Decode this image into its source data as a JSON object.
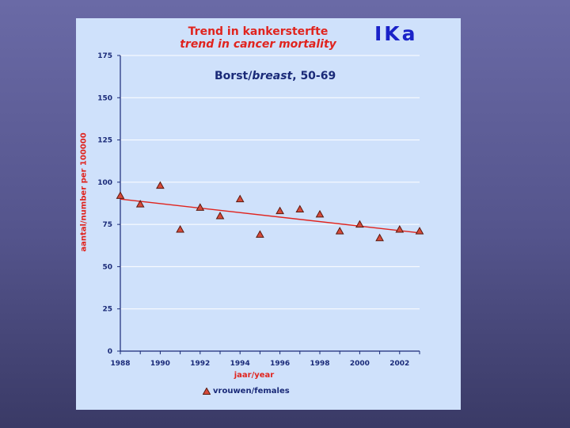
{
  "header": {
    "title_nl": "Trend in kankersterfte",
    "title_en": "trend in cancer mortality",
    "logo": "IKa"
  },
  "subtitle": {
    "prefix": "Borst/",
    "italic": "breast",
    "suffix": ", 50-69"
  },
  "colors": {
    "panel_background": "#cfe1fb",
    "title": "#e0241e",
    "logo": "#1a22c8",
    "axis_text": "#1a2a78",
    "trend_line": "#e0241e",
    "marker_fill": "#d64a3a"
  },
  "chart_data": {
    "type": "scatter",
    "ylabel": "aantal/number per 100000",
    "xlabel": "jaar/year",
    "xlim": [
      1988,
      2003
    ],
    "ylim": [
      0,
      175
    ],
    "x_ticks": [
      1988,
      1990,
      1992,
      1994,
      1996,
      1998,
      2000,
      2002
    ],
    "y_ticks": [
      0,
      25,
      50,
      75,
      100,
      125,
      150,
      175
    ],
    "grid": true,
    "legend_position": "bottom",
    "series": [
      {
        "name": "vrouwen/females",
        "marker": "triangle",
        "x": [
          1988,
          1989,
          1990,
          1991,
          1992,
          1993,
          1994,
          1995,
          1996,
          1997,
          1998,
          1999,
          2000,
          2001,
          2002,
          2003
        ],
        "y": [
          92,
          87,
          98,
          72,
          85,
          80,
          90,
          69,
          83,
          84,
          81,
          71,
          75,
          67,
          72,
          71
        ]
      }
    ],
    "trend_line": {
      "x": [
        1988,
        2003
      ],
      "y": [
        90,
        70
      ]
    }
  }
}
